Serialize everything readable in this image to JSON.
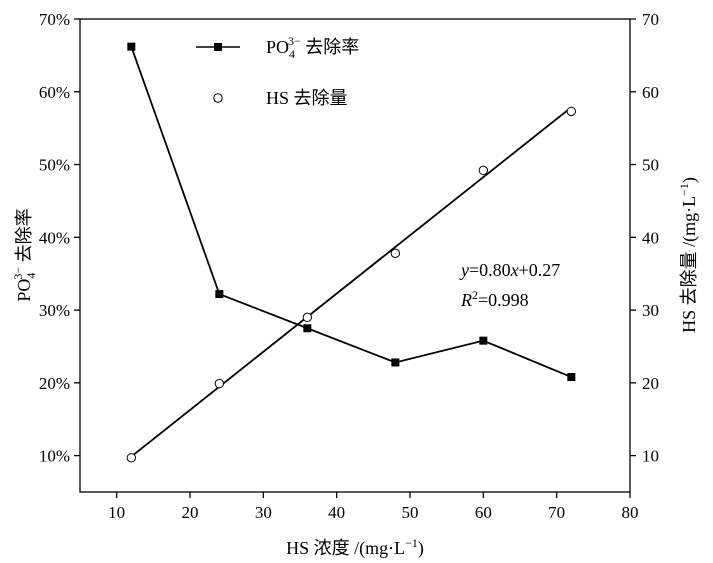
{
  "chart_data": {
    "type": "line",
    "xlabel": "HS 浓度 /(mg·L",
    "xlabel_sup": "−1",
    "xlabel_end": ")",
    "ylabel_left": {
      "pre": "PO",
      "sub": "4",
      "sup": "3−",
      "post": " 去除率"
    },
    "ylabel_right": {
      "pre": "HS 去除量 /(mg·L",
      "sup": "−1",
      "post": ")"
    },
    "xlim": [
      5,
      80
    ],
    "ylim_left": [
      5,
      70
    ],
    "ylim_right": [
      5,
      70
    ],
    "x_ticks": [
      10,
      20,
      30,
      40,
      50,
      60,
      70,
      80
    ],
    "y_left_ticks": [
      "10%",
      "20%",
      "30%",
      "40%",
      "50%",
      "60%",
      "70%"
    ],
    "y_left_tick_values": [
      10,
      20,
      30,
      40,
      50,
      60,
      70
    ],
    "y_right_ticks": [
      10,
      20,
      30,
      40,
      50,
      60,
      70
    ],
    "series": [
      {
        "name": {
          "pre": "PO",
          "sub": "4",
          "sup": "3−",
          "post": " 去除率"
        },
        "axis": "left",
        "marker": "filled-square",
        "x": [
          12,
          24,
          36,
          48,
          60,
          72
        ],
        "y": [
          66.2,
          32.2,
          27.5,
          22.8,
          25.8,
          20.8
        ]
      },
      {
        "name": "HS 去除量",
        "axis": "right",
        "marker": "open-circle",
        "x": [
          12,
          24,
          36,
          48,
          60,
          72
        ],
        "y": [
          9.7,
          19.9,
          29.0,
          37.8,
          49.2,
          57.3
        ]
      }
    ],
    "fit_line": {
      "slope": 0.8,
      "intercept": 0.27,
      "x_range": [
        12,
        72
      ],
      "axis": "right"
    },
    "annotation": {
      "eq": {
        "y": "y",
        "eq1": "=0.80",
        "x": "x",
        "eq2": "+0.27"
      },
      "r2": {
        "R": "R",
        "sup": "2",
        "val": "=0.998"
      }
    },
    "legend_position": "top-left",
    "grid": false
  }
}
